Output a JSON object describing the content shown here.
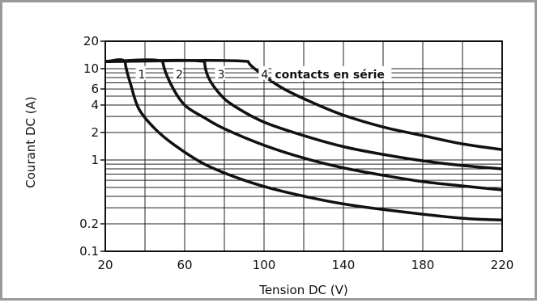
{
  "chart_data": {
    "type": "line",
    "title": "",
    "xlabel": "Tension DC (V)",
    "ylabel": "Courant DC (A)",
    "xlim": [
      20,
      220
    ],
    "ylim": [
      0.1,
      20
    ],
    "y_scale": "log",
    "grid": true,
    "x_ticks": [
      20,
      60,
      100,
      140,
      180,
      220
    ],
    "x_tick_labels": [
      "20",
      "60",
      "100",
      "140",
      "180",
      "220"
    ],
    "x_minor_grid": [
      40,
      80,
      120,
      160,
      200
    ],
    "y_ticks": [
      0.1,
      0.2,
      1,
      2,
      4,
      6,
      10,
      20
    ],
    "y_tick_labels": [
      "0.1",
      "0.2",
      "1",
      "2",
      "4",
      "6",
      "10",
      "20"
    ],
    "y_minor_grid": [
      0.3,
      0.4,
      0.5,
      0.6,
      0.7,
      0.8,
      0.9,
      3,
      5,
      7,
      8,
      9
    ],
    "annotation": "contacts en série",
    "series": [
      {
        "name": "1",
        "x": [
          20,
          30,
          33,
          37,
          45,
          55,
          70,
          90,
          110,
          140,
          170,
          200,
          220
        ],
        "y": [
          12,
          12,
          6.5,
          3.6,
          2.2,
          1.45,
          0.9,
          0.6,
          0.45,
          0.33,
          0.27,
          0.23,
          0.22
        ]
      },
      {
        "name": "2",
        "x": [
          20,
          49,
          53,
          60,
          70,
          80,
          100,
          120,
          140,
          160,
          180,
          200,
          220
        ],
        "y": [
          12,
          12,
          6.8,
          4.0,
          2.9,
          2.2,
          1.45,
          1.05,
          0.82,
          0.68,
          0.58,
          0.52,
          0.47
        ]
      },
      {
        "name": "3",
        "x": [
          20,
          70,
          72,
          78,
          85,
          100,
          120,
          140,
          160,
          180,
          200,
          220
        ],
        "y": [
          12,
          12,
          8.0,
          5.2,
          3.9,
          2.6,
          1.85,
          1.4,
          1.15,
          0.98,
          0.87,
          0.8
        ]
      },
      {
        "name": "4",
        "x": [
          20,
          92,
          100,
          110,
          125,
          140,
          160,
          180,
          200,
          220
        ],
        "y": [
          12,
          12,
          8.4,
          6.0,
          4.2,
          3.1,
          2.3,
          1.85,
          1.5,
          1.3
        ]
      }
    ]
  }
}
